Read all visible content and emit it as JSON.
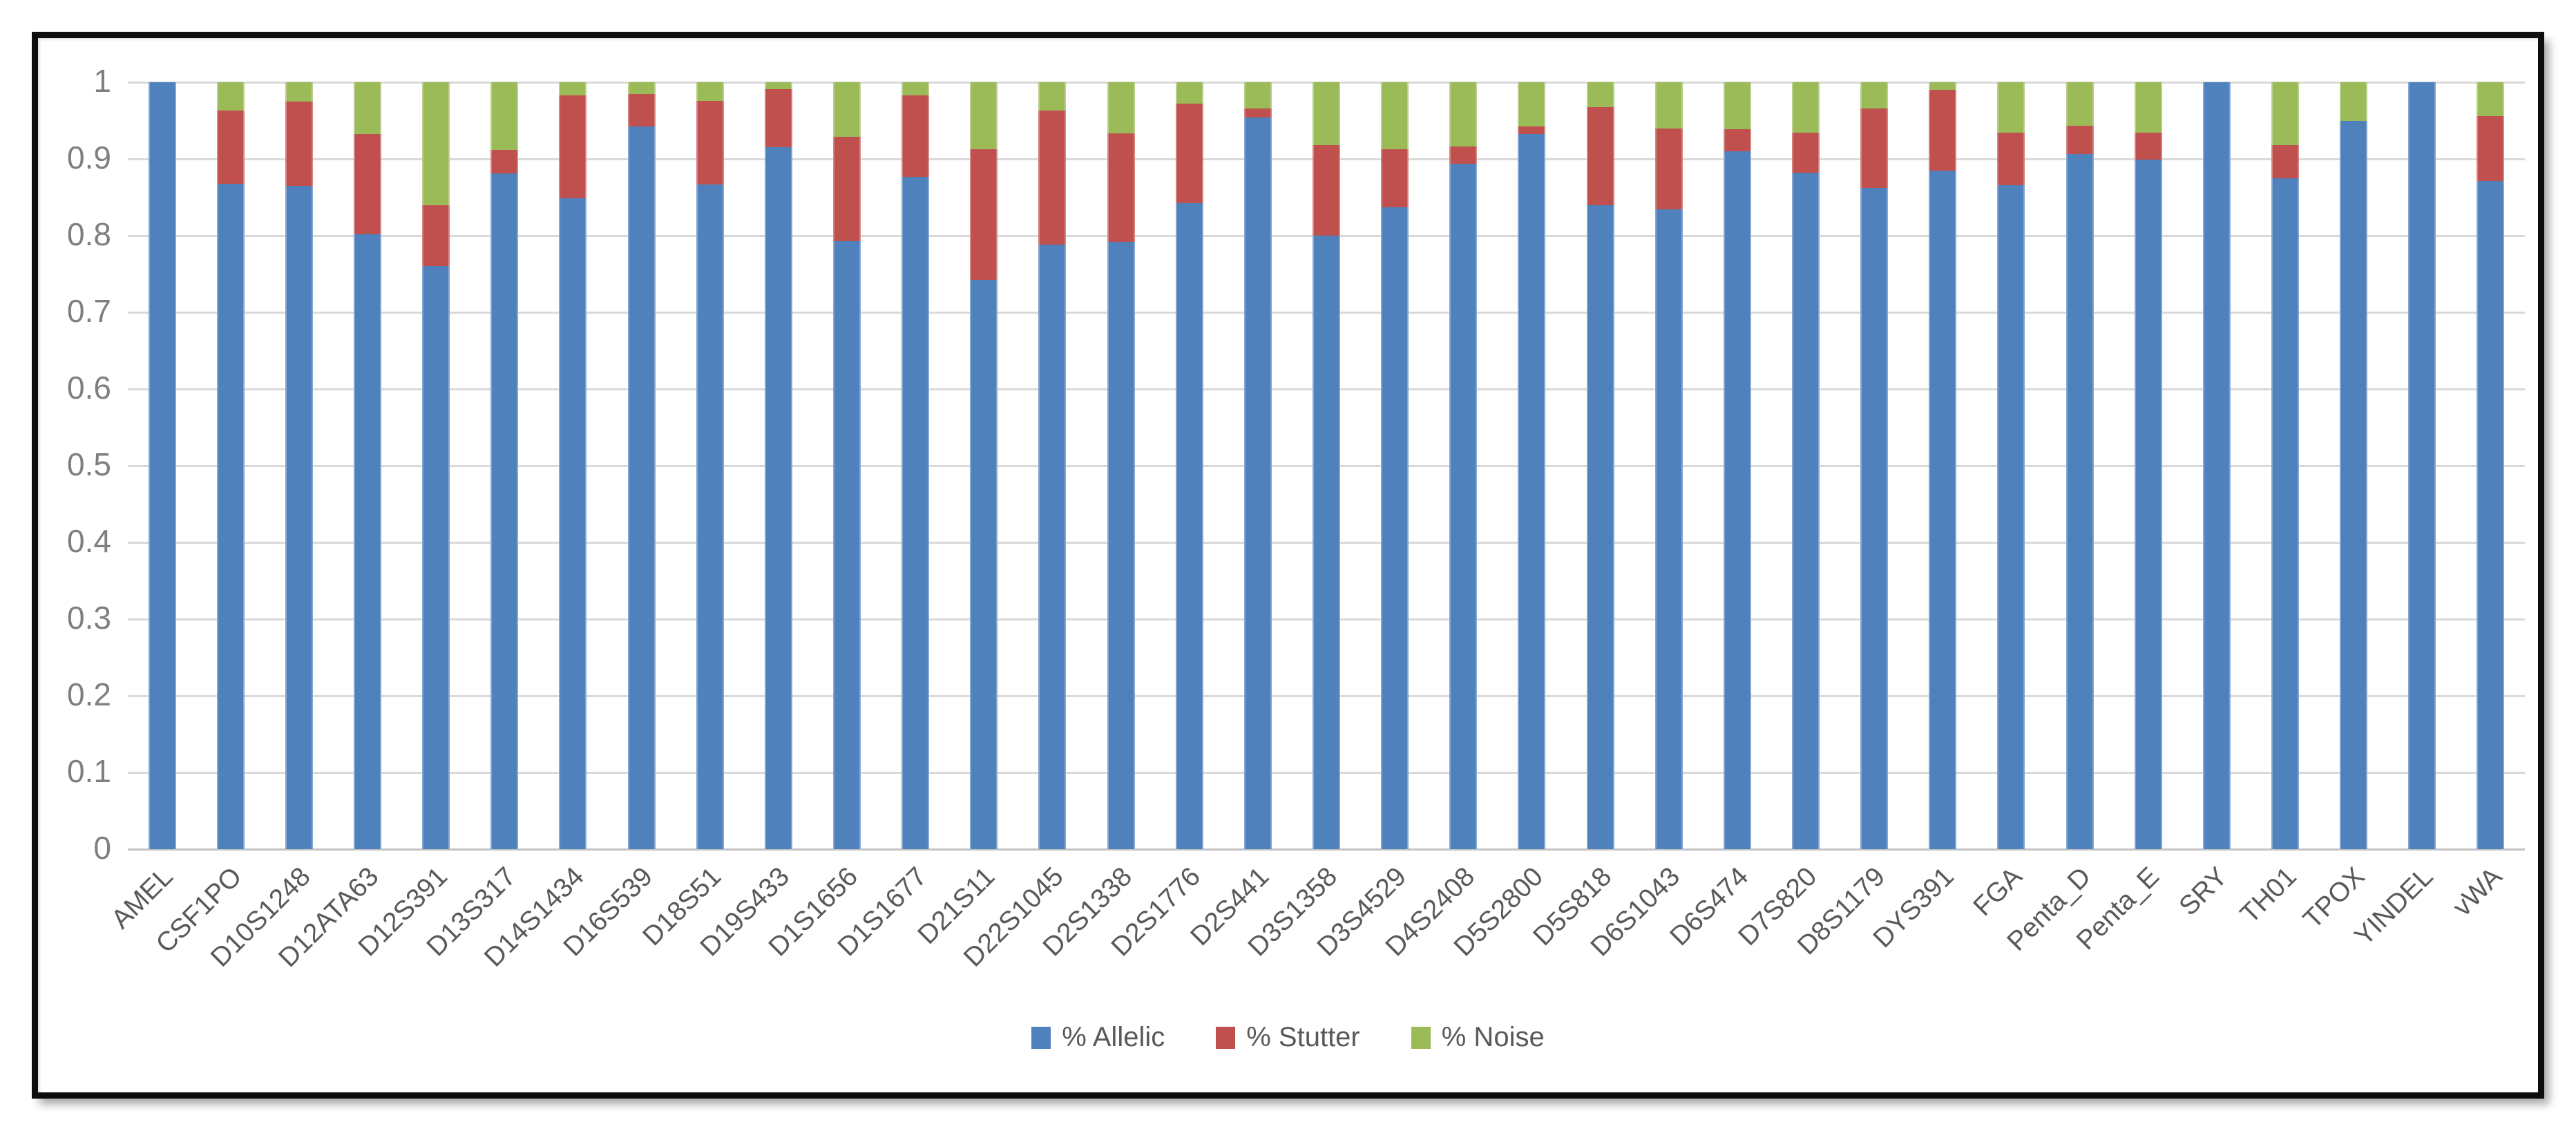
{
  "chart_data": {
    "type": "bar",
    "stacked": true,
    "title": "",
    "xlabel": "",
    "ylabel": "",
    "ylim": [
      0,
      1
    ],
    "ytick_labels": [
      "0",
      "0.1",
      "0.2",
      "0.3",
      "0.4",
      "0.5",
      "0.6",
      "0.7",
      "0.8",
      "0.9",
      "1"
    ],
    "grid": true,
    "legend_position": "bottom",
    "gridline_color": "#D9D9D9",
    "ytick_color": "#7F7F7F",
    "xtick_color": "#595959",
    "categories": [
      "AMEL",
      "CSF1PO",
      "D10S1248",
      "D12ATA63",
      "D12S391",
      "D13S317",
      "D14S1434",
      "D16S539",
      "D18S51",
      "D19S433",
      "D1S1656",
      "D1S1677",
      "D21S11",
      "D22S1045",
      "D2S1338",
      "D2S1776",
      "D2S441",
      "D3S1358",
      "D3S4529",
      "D4S2408",
      "D5S2800",
      "D5S818",
      "D6S1043",
      "D6S474",
      "D7S820",
      "D8S1179",
      "DYS391",
      "FGA",
      "Penta_D",
      "Penta_E",
      "SRY",
      "TH01",
      "TPOX",
      "YINDEL",
      "vWA"
    ],
    "series": [
      {
        "name": "% Allelic",
        "color": "#4F81BD",
        "values": [
          1.0,
          0.868,
          0.865,
          0.802,
          0.76,
          0.881,
          0.849,
          0.942,
          0.867,
          0.915,
          0.793,
          0.877,
          0.742,
          0.788,
          0.792,
          0.842,
          0.954,
          0.8,
          0.837,
          0.894,
          0.932,
          0.84,
          0.834,
          0.91,
          0.882,
          0.862,
          0.885,
          0.866,
          0.906,
          0.899,
          1.0,
          0.875,
          0.95,
          1.0,
          0.871
        ]
      },
      {
        "name": "% Stutter",
        "color": "#C0504D",
        "values": [
          0.0,
          0.095,
          0.11,
          0.13,
          0.08,
          0.031,
          0.134,
          0.043,
          0.109,
          0.076,
          0.136,
          0.106,
          0.171,
          0.175,
          0.141,
          0.13,
          0.012,
          0.118,
          0.076,
          0.022,
          0.01,
          0.128,
          0.106,
          0.029,
          0.052,
          0.104,
          0.105,
          0.068,
          0.037,
          0.035,
          0.0,
          0.043,
          0.0,
          0.0,
          0.085
        ]
      },
      {
        "name": "% Noise",
        "color": "#9BBB59",
        "values": [
          0.0,
          0.037,
          0.025,
          0.068,
          0.16,
          0.088,
          0.017,
          0.015,
          0.024,
          0.009,
          0.071,
          0.017,
          0.087,
          0.037,
          0.067,
          0.028,
          0.034,
          0.082,
          0.087,
          0.084,
          0.058,
          0.032,
          0.06,
          0.061,
          0.066,
          0.034,
          0.01,
          0.066,
          0.057,
          0.066,
          0.0,
          0.082,
          0.05,
          0.0,
          0.044
        ]
      }
    ]
  }
}
